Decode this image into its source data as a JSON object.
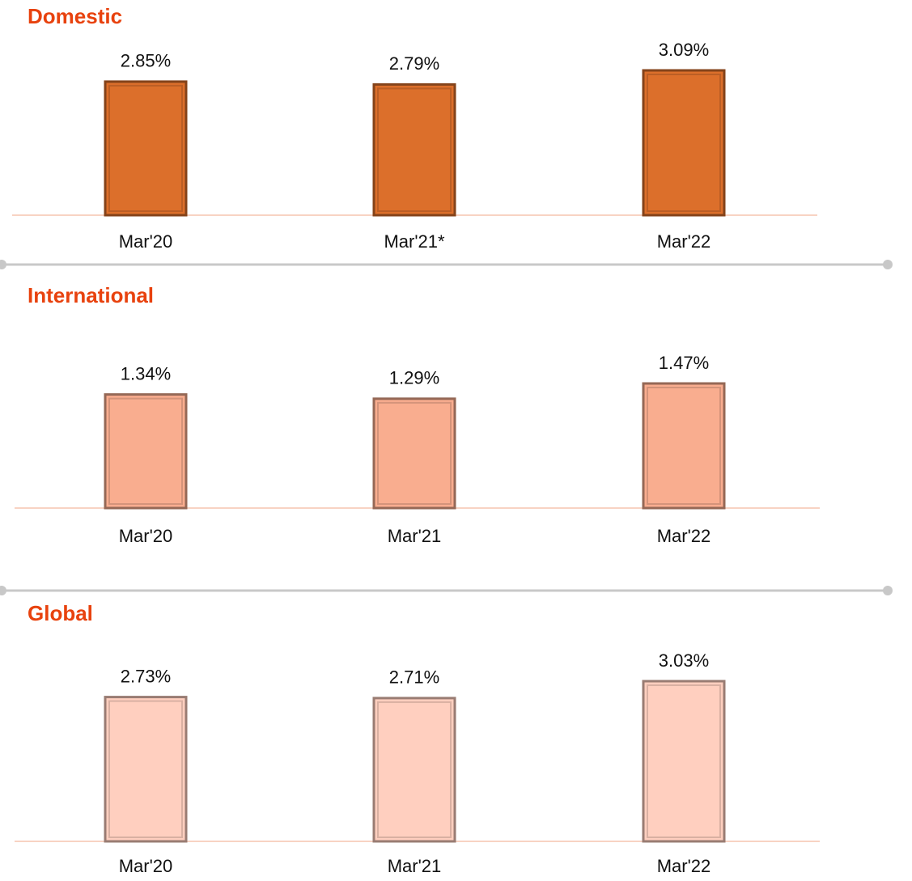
{
  "chart_data": [
    {
      "type": "bar",
      "title": "Domestic",
      "categories": [
        "Mar'20",
        "Mar'21*",
        "Mar'22"
      ],
      "values": [
        2.85,
        2.79,
        3.09
      ],
      "value_labels": [
        "2.85%",
        "2.79%",
        "3.09%"
      ],
      "color": "#dc6f2b"
    },
    {
      "type": "bar",
      "title": "International",
      "categories": [
        "Mar'20",
        "Mar'21",
        "Mar'22"
      ],
      "values": [
        1.34,
        1.29,
        1.47
      ],
      "value_labels": [
        "1.34%",
        "1.29%",
        "1.47%"
      ],
      "color": "#f9ad8f"
    },
    {
      "type": "bar",
      "title": "Global",
      "categories": [
        "Mar'20",
        "Mar'21",
        "Mar'22"
      ],
      "values": [
        2.73,
        2.71,
        3.03
      ],
      "value_labels": [
        "2.73%",
        "2.71%",
        "3.03%"
      ],
      "color": "#ffcfbf"
    }
  ]
}
